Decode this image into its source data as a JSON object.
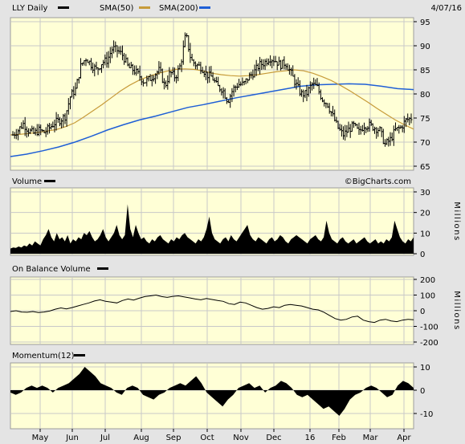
{
  "header": {
    "symbol_label": "LLY Daily",
    "sma50_label": "SMA(50)",
    "sma200_label": "SMA(200)",
    "date": "4/07/16"
  },
  "watermark": "©BigCharts.com",
  "colors": {
    "plot_bg": "#ffffd6",
    "page_bg": "#e4e4e4",
    "grid": "#c8c8c8",
    "price": "#000000",
    "sma50": "#c79b3a",
    "sma200": "#1f5fd6",
    "volume": "#000000"
  },
  "panels": {
    "volume": {
      "title": "Volume",
      "unit": "Millions"
    },
    "obv": {
      "title": "On Balance Volume",
      "unit": "Millions"
    },
    "momentum": {
      "title": "Momentum(12)"
    }
  },
  "chart_data": [
    {
      "type": "ohlc",
      "title": "LLY Daily",
      "x_labels": [
        "May",
        "Jun",
        "Jul",
        "Aug",
        "Sep",
        "Oct",
        "Nov",
        "Dec",
        "16",
        "Feb",
        "Mar",
        "Apr"
      ],
      "ylim": [
        65,
        95
      ],
      "yticks": [
        65,
        70,
        75,
        80,
        85,
        90,
        95
      ],
      "grid": true,
      "series": [
        {
          "name": "LLY Daily",
          "close": [
            71.5,
            72.5,
            73.8,
            72.4,
            71.8,
            72.5,
            72.0,
            73.0,
            74.0,
            74.6,
            75.4,
            79.6,
            81.0,
            86.0,
            87.5,
            86.0,
            85.0,
            86.5,
            87.0,
            89.5,
            89.0,
            88.0,
            85.5,
            85.0,
            84.0,
            82.5,
            83.0,
            84.0,
            85.0,
            81.5,
            84.5,
            83.5,
            86.0,
            92.5,
            87.0,
            86.0,
            85.5,
            84.0,
            83.5,
            81.5,
            81.0,
            78.5,
            81.0,
            82.0,
            82.0,
            83.5,
            84.5,
            86.0,
            86.5,
            87.5,
            87.0,
            86.0,
            86.5,
            84.5,
            82.0,
            80.0,
            80.0,
            82.0,
            81.5,
            79.0,
            78.0,
            75.5,
            73.0,
            71.5,
            72.5,
            73.5,
            72.0,
            73.5,
            73.5,
            73.0,
            72.5,
            69.5,
            70.5,
            72.5,
            73.0,
            74.5,
            75.0
          ],
          "ma": "sma"
        },
        {
          "name": "SMA(50)",
          "values": [
            71.5,
            71.6,
            71.8,
            72.0,
            72.3,
            72.6,
            73.2,
            74.0,
            75.2,
            76.5,
            77.8,
            79.2,
            80.6,
            81.8,
            82.8,
            83.6,
            84.2,
            84.7,
            85.1,
            85.2,
            85.1,
            84.8,
            84.3,
            84.0,
            83.8,
            83.7,
            83.8,
            84.0,
            84.3,
            84.6,
            84.8,
            85.0,
            84.8,
            84.3,
            83.6,
            82.8,
            81.8,
            80.7,
            79.5,
            78.3,
            77.0,
            75.8,
            74.6,
            73.6,
            72.7
          ]
        },
        {
          "name": "SMA(200)",
          "values": [
            67.0,
            67.5,
            68.2,
            69.0,
            70.0,
            71.2,
            72.5,
            73.6,
            74.6,
            75.4,
            76.3,
            77.2,
            77.8,
            78.5,
            79.2,
            79.8,
            80.4,
            81.0,
            81.6,
            81.9,
            82.0,
            82.1,
            82.0,
            81.6,
            81.1,
            80.9
          ]
        }
      ]
    },
    {
      "type": "area",
      "title": "Volume",
      "ylabel": "Millions",
      "ylim": [
        0,
        30
      ],
      "yticks": [
        0,
        10,
        20,
        30
      ],
      "values": [
        2.5,
        3,
        2.8,
        3.5,
        3,
        4,
        3.5,
        5,
        4,
        6,
        5,
        4,
        7,
        9,
        12,
        8,
        6,
        10,
        7,
        8,
        6,
        9,
        5,
        7,
        6,
        8,
        7,
        10,
        9,
        11,
        8,
        6,
        7,
        9,
        12,
        8,
        6,
        8,
        10,
        14,
        9,
        7,
        9,
        24,
        12,
        8,
        14,
        10,
        7,
        8,
        6,
        5,
        7,
        6,
        8,
        9,
        7,
        6,
        5,
        7,
        6,
        8,
        7,
        9,
        10,
        8,
        7,
        6,
        5,
        7,
        6,
        8,
        12,
        18,
        10,
        7,
        6,
        5,
        7,
        8,
        6,
        9,
        7,
        6,
        8,
        10,
        12,
        14,
        9,
        7,
        6,
        8,
        7,
        6,
        5,
        7,
        8,
        6,
        7,
        9,
        8,
        6,
        5,
        7,
        8,
        9,
        8,
        7,
        6,
        5,
        7,
        8,
        9,
        7,
        6,
        8,
        16,
        10,
        7,
        6,
        5,
        7,
        8,
        6,
        5,
        6,
        7,
        5,
        6,
        7,
        8,
        6,
        5,
        6,
        7,
        5,
        6,
        5,
        7,
        6,
        8,
        16,
        12,
        8,
        6,
        5,
        7,
        6,
        8
      ]
    },
    {
      "type": "line",
      "title": "On Balance Volume",
      "ylabel": "Millions",
      "ylim": [
        -200,
        200
      ],
      "yticks": [
        -200,
        -100,
        0,
        100,
        200
      ],
      "values": [
        -5,
        0,
        -8,
        -10,
        -5,
        -12,
        -8,
        -2,
        10,
        18,
        12,
        20,
        30,
        40,
        50,
        62,
        70,
        60,
        55,
        50,
        65,
        75,
        68,
        80,
        90,
        95,
        100,
        90,
        85,
        92,
        95,
        88,
        82,
        75,
        70,
        78,
        72,
        65,
        60,
        45,
        40,
        55,
        50,
        35,
        20,
        10,
        15,
        25,
        20,
        35,
        40,
        35,
        30,
        20,
        10,
        5,
        -10,
        -30,
        -50,
        -60,
        -55,
        -40,
        -35,
        -60,
        -70,
        -75,
        -60,
        -55,
        -65,
        -70,
        -60,
        -55,
        -58
      ]
    },
    {
      "type": "area",
      "title": "Momentum(12)",
      "ylim": [
        -10,
        10
      ],
      "yticks": [
        -10,
        0,
        10
      ],
      "values": [
        -1,
        -2,
        -1,
        1,
        2,
        1,
        2,
        1,
        -1,
        1,
        2,
        3,
        5,
        7,
        10,
        8,
        6,
        3,
        2,
        1,
        -1,
        -2,
        1,
        2,
        1,
        -2,
        -3,
        -4,
        -2,
        -1,
        1,
        2,
        3,
        2,
        4,
        6,
        3,
        -1,
        -3,
        -5,
        -7,
        -4,
        -2,
        1,
        2,
        3,
        1,
        2,
        -1,
        1,
        2,
        4,
        3,
        1,
        -2,
        -3,
        -2,
        -4,
        -6,
        -8,
        -7,
        -9,
        -11,
        -8,
        -4,
        -2,
        -1,
        1,
        2,
        1,
        -1,
        -3,
        -2,
        2,
        4,
        3,
        1
      ]
    }
  ]
}
